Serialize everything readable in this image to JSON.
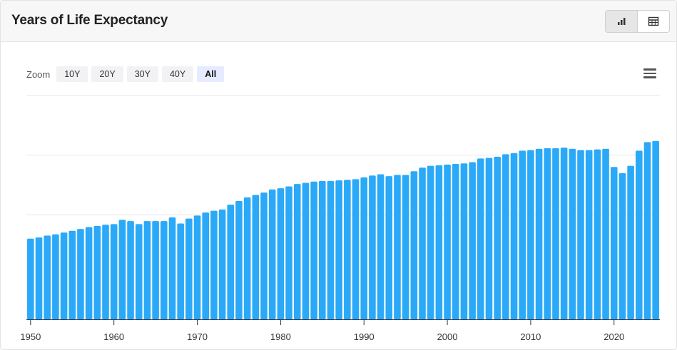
{
  "header": {
    "title": "Years of Life Expectancy",
    "view_buttons": [
      {
        "icon": "bar-chart-icon",
        "active": true
      },
      {
        "icon": "table-icon",
        "active": false
      }
    ]
  },
  "zoom": {
    "label": "Zoom",
    "options": [
      "10Y",
      "20Y",
      "30Y",
      "40Y",
      "All"
    ],
    "selected": "All"
  },
  "menu_icon": "hamburger-menu-icon",
  "colors": {
    "bar": "#2aa9f8",
    "grid": "#e6e6e6",
    "axis": "#333333"
  },
  "chart_data": {
    "type": "bar",
    "title": "",
    "xlabel": "",
    "ylabel": "",
    "grid": true,
    "ylim": [
      48,
      85
    ],
    "xticks": [
      1950,
      1960,
      1970,
      1980,
      1990,
      2000,
      2010,
      2020
    ],
    "categories": [
      1950,
      1951,
      1952,
      1953,
      1954,
      1955,
      1956,
      1957,
      1958,
      1959,
      1960,
      1961,
      1962,
      1963,
      1964,
      1965,
      1966,
      1967,
      1968,
      1969,
      1970,
      1971,
      1972,
      1973,
      1974,
      1975,
      1976,
      1977,
      1978,
      1979,
      1980,
      1981,
      1982,
      1983,
      1984,
      1985,
      1986,
      1987,
      1988,
      1989,
      1990,
      1991,
      1992,
      1993,
      1994,
      1995,
      1996,
      1997,
      1998,
      1999,
      2000,
      2001,
      2002,
      2003,
      2004,
      2005,
      2006,
      2007,
      2008,
      2009,
      2010,
      2011,
      2012,
      2013,
      2014,
      2015,
      2016,
      2017,
      2018,
      2019,
      2020,
      2021,
      2022,
      2023,
      2024,
      2025
    ],
    "values": [
      61.3,
      61.5,
      61.8,
      62.0,
      62.3,
      62.6,
      62.9,
      63.2,
      63.4,
      63.6,
      63.7,
      64.4,
      64.2,
      63.7,
      64.2,
      64.2,
      64.2,
      64.8,
      63.8,
      64.6,
      65.1,
      65.6,
      65.9,
      66.1,
      66.9,
      67.5,
      68.1,
      68.5,
      68.9,
      69.4,
      69.6,
      69.9,
      70.3,
      70.5,
      70.7,
      70.8,
      70.8,
      70.9,
      71.0,
      71.1,
      71.4,
      71.7,
      71.9,
      71.6,
      71.8,
      71.8,
      72.4,
      73.0,
      73.3,
      73.4,
      73.5,
      73.6,
      73.7,
      73.9,
      74.5,
      74.6,
      74.8,
      75.2,
      75.4,
      75.8,
      75.9,
      76.1,
      76.2,
      76.2,
      76.3,
      76.1,
      75.9,
      75.9,
      76.0,
      76.1,
      73.1,
      72.1,
      73.3,
      75.8,
      77.2,
      77.4
    ]
  }
}
